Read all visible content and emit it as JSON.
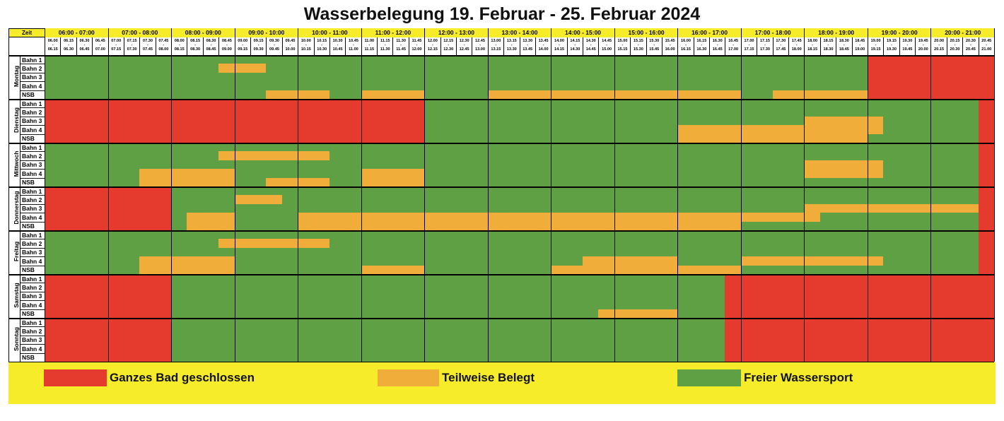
{
  "title": "Wasserbelegung 19. Februar - 25. Februar 2024",
  "colors": {
    "red": "#e53a2e",
    "orange": "#f0ad3a",
    "green": "#5ea043",
    "yellow": "#f7ec2a"
  },
  "zeit_label": "Zeit",
  "hours": [
    "06:00 - 07:00",
    "07:00 - 08:00",
    "08:00 - 09:00",
    "09:00 - 10:00",
    "10:00 - 11:00",
    "11:00 - 12:00",
    "12:00 - 13:00",
    "13:00 - 14:00",
    "14:00 - 15:00",
    "15:00 - 16:00",
    "16:00 - 17:00",
    "17:00 - 18:00",
    "18:00 - 19:00",
    "19:00 - 20:00",
    "20:00 - 21:00"
  ],
  "slots": [
    [
      "06.00",
      "06.15"
    ],
    [
      "06.15",
      "06.30"
    ],
    [
      "06.30",
      "06.45"
    ],
    [
      "06.45",
      "07.00"
    ],
    [
      "07.00",
      "07.15"
    ],
    [
      "07.15",
      "07.30"
    ],
    [
      "07.30",
      "07.45"
    ],
    [
      "07.45",
      "08.00"
    ],
    [
      "08.00",
      "08.15"
    ],
    [
      "08.15",
      "08.30"
    ],
    [
      "08.30",
      "08.45"
    ],
    [
      "08.45",
      "09.00"
    ],
    [
      "09.00",
      "09.15"
    ],
    [
      "09.15",
      "09.30"
    ],
    [
      "09.30",
      "09.45"
    ],
    [
      "09.45",
      "10.00"
    ],
    [
      "10.00",
      "10.15"
    ],
    [
      "10.15",
      "10.30"
    ],
    [
      "10.30",
      "10.45"
    ],
    [
      "10.45",
      "11.00"
    ],
    [
      "11.00",
      "11.15"
    ],
    [
      "11.15",
      "11.30"
    ],
    [
      "11.30",
      "11.45"
    ],
    [
      "11.45",
      "12.00"
    ],
    [
      "12.00",
      "12.15"
    ],
    [
      "12.15",
      "12.30"
    ],
    [
      "12.30",
      "12.45"
    ],
    [
      "12.45",
      "13.00"
    ],
    [
      "13.00",
      "13.15"
    ],
    [
      "13.15",
      "13.30"
    ],
    [
      "13.30",
      "13.45"
    ],
    [
      "13.45",
      "14.00"
    ],
    [
      "14.00",
      "14.15"
    ],
    [
      "14.15",
      "14.30"
    ],
    [
      "14.30",
      "14.45"
    ],
    [
      "14.45",
      "15.00"
    ],
    [
      "15.00",
      "15.15"
    ],
    [
      "15.15",
      "15.30"
    ],
    [
      "15.30",
      "15.45"
    ],
    [
      "15.45",
      "16.00"
    ],
    [
      "16.00",
      "16.15"
    ],
    [
      "16.15",
      "16.30"
    ],
    [
      "16.30",
      "16.45"
    ],
    [
      "16.45",
      "17.00"
    ],
    [
      "17.00",
      "17.15"
    ],
    [
      "17.15",
      "17.30"
    ],
    [
      "17.30",
      "17.45"
    ],
    [
      "17.45",
      "18.00"
    ],
    [
      "18.00",
      "18.15"
    ],
    [
      "18.15",
      "18.30"
    ],
    [
      "18.30",
      "18.45"
    ],
    [
      "18.45",
      "19.00"
    ],
    [
      "19.00",
      "19.15"
    ],
    [
      "19.15",
      "19.30"
    ],
    [
      "19.30",
      "19.45"
    ],
    [
      "19.45",
      "20.00"
    ],
    [
      "20.00",
      "20.15"
    ],
    [
      "20.15",
      "20.30"
    ],
    [
      "20.30",
      "20.45"
    ],
    [
      "20.45",
      "21.00"
    ]
  ],
  "lanes": [
    "Bahn 1",
    "Bahn 2",
    "Bahn 3",
    "Bahn 4",
    "NSB"
  ],
  "days": [
    {
      "name": "Montag",
      "lanes": [
        [
          [
            "g",
            0,
            52
          ],
          [
            "r",
            52,
            60
          ]
        ],
        [
          [
            "g",
            0,
            11
          ],
          [
            "o",
            11,
            14
          ],
          [
            "g",
            14,
            52
          ],
          [
            "r",
            52,
            60
          ]
        ],
        [
          [
            "g",
            0,
            52
          ],
          [
            "r",
            52,
            60
          ]
        ],
        [
          [
            "g",
            0,
            52
          ],
          [
            "r",
            52,
            60
          ]
        ],
        [
          [
            "g",
            0,
            14
          ],
          [
            "o",
            14,
            18
          ],
          [
            "g",
            18,
            20
          ],
          [
            "o",
            20,
            24
          ],
          [
            "g",
            24,
            28
          ],
          [
            "o",
            28,
            44
          ],
          [
            "g",
            44,
            46
          ],
          [
            "o",
            46,
            52
          ],
          [
            "r",
            52,
            60
          ]
        ]
      ]
    },
    {
      "name": "Dienstag",
      "lanes": [
        [
          [
            "r",
            0,
            24
          ],
          [
            "g",
            24,
            59
          ],
          [
            "r",
            59,
            60
          ]
        ],
        [
          [
            "r",
            0,
            24
          ],
          [
            "g",
            24,
            59
          ],
          [
            "r",
            59,
            60
          ]
        ],
        [
          [
            "r",
            0,
            24
          ],
          [
            "g",
            24,
            48
          ],
          [
            "o",
            48,
            53
          ],
          [
            "g",
            53,
            59
          ],
          [
            "r",
            59,
            60
          ]
        ],
        [
          [
            "r",
            0,
            24
          ],
          [
            "g",
            24,
            40
          ],
          [
            "o",
            40,
            53
          ],
          [
            "g",
            53,
            59
          ],
          [
            "r",
            59,
            60
          ]
        ],
        [
          [
            "r",
            0,
            24
          ],
          [
            "g",
            24,
            40
          ],
          [
            "o",
            40,
            52
          ],
          [
            "g",
            52,
            59
          ],
          [
            "r",
            59,
            60
          ]
        ]
      ]
    },
    {
      "name": "Mittwoch",
      "lanes": [
        [
          [
            "g",
            0,
            59
          ],
          [
            "r",
            59,
            60
          ]
        ],
        [
          [
            "g",
            0,
            11
          ],
          [
            "o",
            11,
            18
          ],
          [
            "g",
            18,
            59
          ],
          [
            "r",
            59,
            60
          ]
        ],
        [
          [
            "g",
            0,
            48
          ],
          [
            "o",
            48,
            53
          ],
          [
            "g",
            53,
            59
          ],
          [
            "r",
            59,
            60
          ]
        ],
        [
          [
            "g",
            0,
            6
          ],
          [
            "o",
            6,
            12
          ],
          [
            "g",
            12,
            20
          ],
          [
            "o",
            20,
            24
          ],
          [
            "g",
            24,
            48
          ],
          [
            "o",
            48,
            53
          ],
          [
            "g",
            53,
            59
          ],
          [
            "r",
            59,
            60
          ]
        ],
        [
          [
            "g",
            0,
            6
          ],
          [
            "o",
            6,
            12
          ],
          [
            "g",
            12,
            14
          ],
          [
            "o",
            14,
            18
          ],
          [
            "g",
            18,
            20
          ],
          [
            "o",
            20,
            24
          ],
          [
            "g",
            24,
            59
          ],
          [
            "r",
            59,
            60
          ]
        ]
      ]
    },
    {
      "name": "Donnerstag",
      "lanes": [
        [
          [
            "r",
            0,
            8
          ],
          [
            "g",
            8,
            59
          ],
          [
            "r",
            59,
            60
          ]
        ],
        [
          [
            "r",
            0,
            8
          ],
          [
            "g",
            8,
            12
          ],
          [
            "o",
            12,
            15
          ],
          [
            "g",
            15,
            59
          ],
          [
            "r",
            59,
            60
          ]
        ],
        [
          [
            "r",
            0,
            8
          ],
          [
            "g",
            8,
            48
          ],
          [
            "o",
            48,
            59
          ],
          [
            "r",
            59,
            60
          ]
        ],
        [
          [
            "r",
            0,
            8
          ],
          [
            "g",
            8,
            9
          ],
          [
            "o",
            9,
            12
          ],
          [
            "g",
            12,
            16
          ],
          [
            "o",
            16,
            49
          ],
          [
            "g",
            49,
            59
          ],
          [
            "r",
            59,
            60
          ]
        ],
        [
          [
            "r",
            0,
            8
          ],
          [
            "g",
            8,
            9
          ],
          [
            "o",
            9,
            12
          ],
          [
            "g",
            12,
            16
          ],
          [
            "o",
            16,
            44
          ],
          [
            "g",
            44,
            59
          ],
          [
            "r",
            59,
            60
          ]
        ]
      ]
    },
    {
      "name": "Freitag",
      "lanes": [
        [
          [
            "g",
            0,
            59
          ],
          [
            "r",
            59,
            60
          ]
        ],
        [
          [
            "g",
            0,
            11
          ],
          [
            "o",
            11,
            18
          ],
          [
            "g",
            18,
            59
          ],
          [
            "r",
            59,
            60
          ]
        ],
        [
          [
            "g",
            0,
            59
          ],
          [
            "r",
            59,
            60
          ]
        ],
        [
          [
            "g",
            0,
            6
          ],
          [
            "o",
            6,
            12
          ],
          [
            "g",
            12,
            34
          ],
          [
            "o",
            34,
            40
          ],
          [
            "g",
            40,
            44
          ],
          [
            "o",
            44,
            53
          ],
          [
            "g",
            53,
            59
          ],
          [
            "r",
            59,
            60
          ]
        ],
        [
          [
            "g",
            0,
            6
          ],
          [
            "o",
            6,
            12
          ],
          [
            "g",
            12,
            20
          ],
          [
            "o",
            20,
            24
          ],
          [
            "g",
            24,
            32
          ],
          [
            "o",
            32,
            44
          ],
          [
            "g",
            44,
            59
          ],
          [
            "r",
            59,
            60
          ]
        ]
      ]
    },
    {
      "name": "Samstag",
      "lanes": [
        [
          [
            "r",
            0,
            8
          ],
          [
            "g",
            8,
            43
          ],
          [
            "r",
            43,
            60
          ]
        ],
        [
          [
            "r",
            0,
            8
          ],
          [
            "g",
            8,
            43
          ],
          [
            "r",
            43,
            60
          ]
        ],
        [
          [
            "r",
            0,
            8
          ],
          [
            "g",
            8,
            43
          ],
          [
            "r",
            43,
            60
          ]
        ],
        [
          [
            "r",
            0,
            8
          ],
          [
            "g",
            8,
            43
          ],
          [
            "r",
            43,
            60
          ]
        ],
        [
          [
            "r",
            0,
            8
          ],
          [
            "g",
            8,
            35
          ],
          [
            "o",
            35,
            40
          ],
          [
            "g",
            40,
            43
          ],
          [
            "r",
            43,
            60
          ]
        ]
      ]
    },
    {
      "name": "Sonntag",
      "lanes": [
        [
          [
            "r",
            0,
            8
          ],
          [
            "g",
            8,
            43
          ],
          [
            "r",
            43,
            60
          ]
        ],
        [
          [
            "r",
            0,
            8
          ],
          [
            "g",
            8,
            43
          ],
          [
            "r",
            43,
            60
          ]
        ],
        [
          [
            "r",
            0,
            8
          ],
          [
            "g",
            8,
            43
          ],
          [
            "r",
            43,
            60
          ]
        ],
        [
          [
            "r",
            0,
            8
          ],
          [
            "g",
            8,
            43
          ],
          [
            "r",
            43,
            60
          ]
        ],
        [
          [
            "r",
            0,
            8
          ],
          [
            "g",
            8,
            43
          ],
          [
            "r",
            43,
            60
          ]
        ]
      ]
    }
  ],
  "legend": [
    {
      "color": "red",
      "label": "Ganzes Bad geschlossen"
    },
    {
      "color": "orange",
      "label": "Teilweise Belegt"
    },
    {
      "color": "green",
      "label": "Freier Wassersport"
    }
  ]
}
